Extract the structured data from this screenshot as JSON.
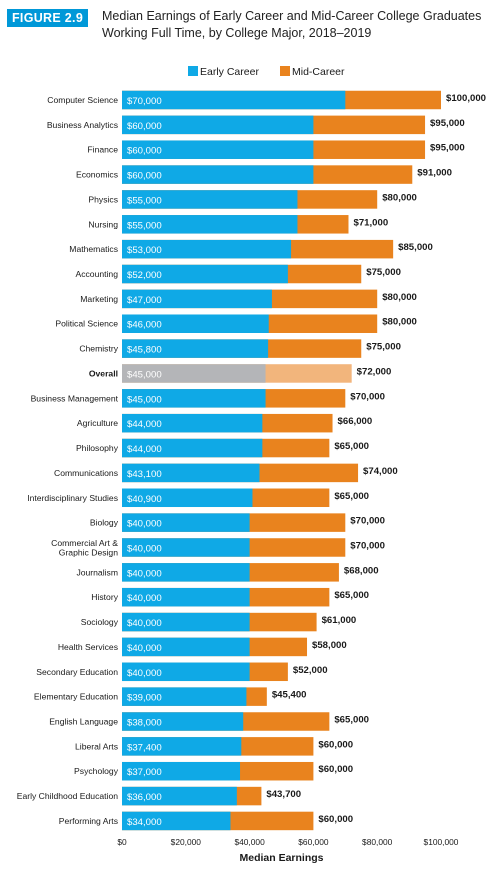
{
  "header": {
    "figure_label": "FIGURE 2.9",
    "title_line1": "Median Earnings of Early Career and Mid-Career College Graduates",
    "title_line2": "Working Full Time, by College Major, 2018–2019"
  },
  "colors": {
    "early": "#0fa9e6",
    "mid": "#e9831e",
    "early_highlight": "#b4b5b8",
    "mid_highlight": "#f2b57c",
    "badge": "#0098d8"
  },
  "chart_data": {
    "type": "bar",
    "orientation": "horizontal",
    "stacked": "overlay",
    "title": "Median Earnings of Early Career and Mid-Career College Graduates Working Full Time, by College Major, 2018–2019",
    "xlabel": "Median Earnings",
    "ylabel": "",
    "xlim": [
      0,
      100000
    ],
    "xticks": [
      "$0",
      "$20,000",
      "$40,000",
      "$60,000",
      "$80,000",
      "$100,000"
    ],
    "legend_position": "top",
    "grid": false,
    "highlight_category": "Overall",
    "categories": [
      "Computer Science",
      "Business Analytics",
      "Finance",
      "Economics",
      "Physics",
      "Nursing",
      "Mathematics",
      "Accounting",
      "Marketing",
      "Political Science",
      "Chemistry",
      "Overall",
      "Business Management",
      "Agriculture",
      "Philosophy",
      "Communications",
      "Interdisciplinary Studies",
      "Biology",
      "Commercial Art &\nGraphic Design",
      "Journalism",
      "History",
      "Sociology",
      "Health Services",
      "Secondary Education",
      "Elementary Education",
      "English Language",
      "Liberal Arts",
      "Psychology",
      "Early Childhood Education",
      "Performing Arts"
    ],
    "series": [
      {
        "name": "Early Career",
        "values": [
          70000,
          60000,
          60000,
          60000,
          55000,
          55000,
          53000,
          52000,
          47000,
          46000,
          45800,
          45000,
          45000,
          44000,
          44000,
          43100,
          40900,
          40000,
          40000,
          40000,
          40000,
          40000,
          40000,
          40000,
          39000,
          38000,
          37400,
          37000,
          36000,
          34000
        ],
        "labels": [
          "$70,000",
          "$60,000",
          "$60,000",
          "$60,000",
          "$55,000",
          "$55,000",
          "$53,000",
          "$52,000",
          "$47,000",
          "$46,000",
          "$45,800",
          "$45,000",
          "$45,000",
          "$44,000",
          "$44,000",
          "$43,100",
          "$40,900",
          "$40,000",
          "$40,000",
          "$40,000",
          "$40,000",
          "$40,000",
          "$40,000",
          "$40,000",
          "$39,000",
          "$38,000",
          "$37,400",
          "$37,000",
          "$36,000",
          "$34,000"
        ]
      },
      {
        "name": "Mid-Career",
        "values": [
          100000,
          95000,
          95000,
          91000,
          80000,
          71000,
          85000,
          75000,
          80000,
          80000,
          75000,
          72000,
          70000,
          66000,
          65000,
          74000,
          65000,
          70000,
          70000,
          68000,
          65000,
          61000,
          58000,
          52000,
          45400,
          65000,
          60000,
          60000,
          43700,
          60000
        ],
        "labels": [
          "$100,000",
          "$95,000",
          "$95,000",
          "$91,000",
          "$80,000",
          "$71,000",
          "$85,000",
          "$75,000",
          "$80,000",
          "$80,000",
          "$75,000",
          "$72,000",
          "$70,000",
          "$66,000",
          "$65,000",
          "$74,000",
          "$65,000",
          "$70,000",
          "$70,000",
          "$68,000",
          "$65,000",
          "$61,000",
          "$58,000",
          "$52,000",
          "$45,400",
          "$65,000",
          "$60,000",
          "$60,000",
          "$43,700",
          "$60,000"
        ]
      }
    ]
  }
}
